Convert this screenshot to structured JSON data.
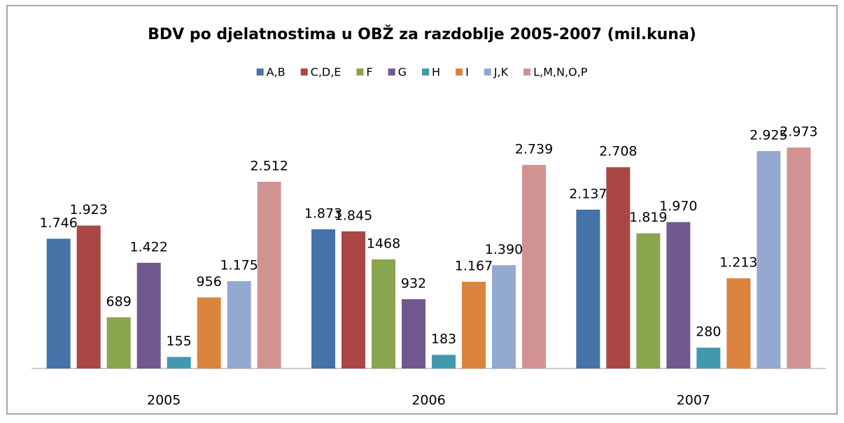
{
  "chart_data": {
    "type": "bar",
    "title": "BDV po djelatnostima u OBŽ za razdoblje 2005-2007 (mil.kuna)",
    "categories": [
      "2005",
      "2006",
      "2007"
    ],
    "series": [
      {
        "name": "A,B",
        "color": "#4572a7",
        "values": [
          1746,
          1873,
          2137
        ],
        "value_labels": [
          "1.746",
          "1.873",
          "2.137"
        ]
      },
      {
        "name": "C,D,E",
        "color": "#aa4643",
        "values": [
          1923,
          1845,
          2708
        ],
        "value_labels": [
          "1.923",
          "1.845",
          "2.708"
        ]
      },
      {
        "name": "F",
        "color": "#89a54e",
        "values": [
          689,
          1468,
          1819
        ],
        "value_labels": [
          "689",
          "1468",
          "1.819"
        ]
      },
      {
        "name": "G",
        "color": "#71588f",
        "values": [
          1422,
          932,
          1970
        ],
        "value_labels": [
          "1.422",
          "932",
          "1.970"
        ]
      },
      {
        "name": "H",
        "color": "#4198af",
        "values": [
          155,
          183,
          280
        ],
        "value_labels": [
          "155",
          "183",
          "280"
        ]
      },
      {
        "name": "I",
        "color": "#db843d",
        "values": [
          956,
          1167,
          1213
        ],
        "value_labels": [
          "956",
          "1.167",
          "1.213"
        ]
      },
      {
        "name": "J,K",
        "color": "#93a9cf",
        "values": [
          1175,
          1390,
          2925
        ],
        "value_labels": [
          "1.175",
          "1.390",
          "2.925"
        ]
      },
      {
        "name": "L,M,N,O,P",
        "color": "#d19392",
        "values": [
          2512,
          2739,
          2973
        ],
        "value_labels": [
          "2.512",
          "2.739",
          "2.973"
        ]
      }
    ]
  }
}
